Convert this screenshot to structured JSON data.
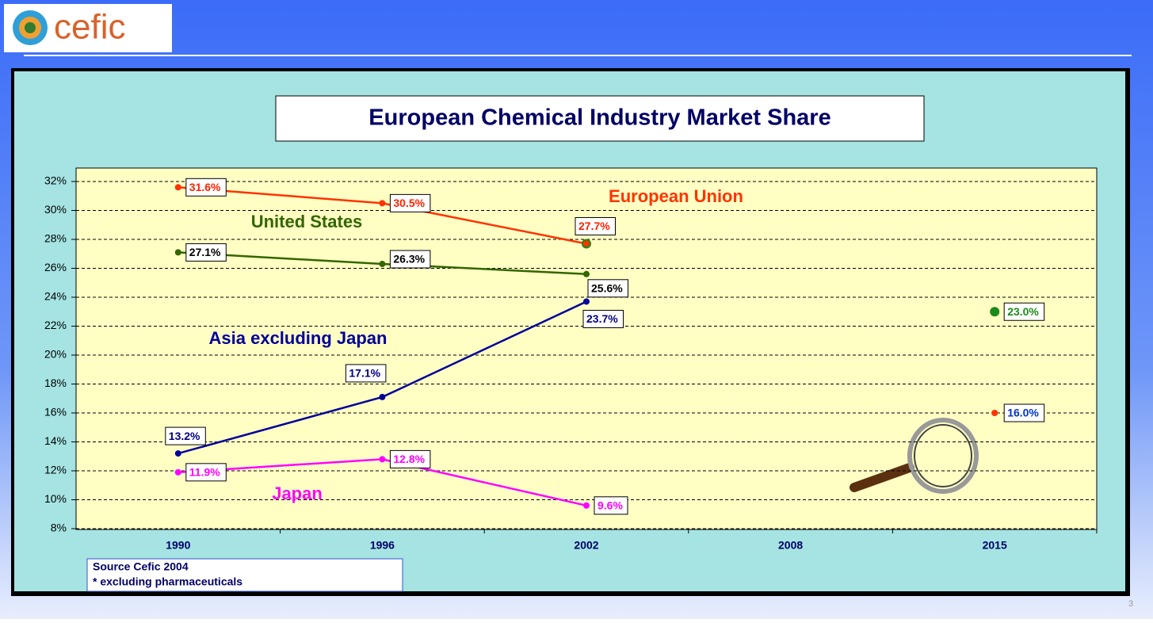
{
  "logo": "cefic",
  "page_number": "3",
  "chart_data": {
    "type": "line",
    "title": "European Chemical Industry Market Share",
    "categories": [
      "1990",
      "1996",
      "2002",
      "2008",
      "2015"
    ],
    "ylim": [
      8,
      32
    ],
    "yticks": [
      {
        "value": 8,
        "label": "8%"
      },
      {
        "value": 10,
        "label": "10%"
      },
      {
        "value": 12,
        "label": "12%"
      },
      {
        "value": 14,
        "label": "14%"
      },
      {
        "value": 16,
        "label": "16%"
      },
      {
        "value": 18,
        "label": "18%"
      },
      {
        "value": 20,
        "label": "20%"
      },
      {
        "value": 22,
        "label": "22%"
      },
      {
        "value": 24,
        "label": "24%"
      },
      {
        "value": 26,
        "label": "26%"
      },
      {
        "value": 28,
        "label": "28%"
      },
      {
        "value": 30,
        "label": "30%"
      },
      {
        "value": 32,
        "label": "32%"
      }
    ],
    "grid": true,
    "series": [
      {
        "name": "European Union",
        "color": "#ff3300",
        "label_color": "#ff2200",
        "values": [
          31.6,
          30.5,
          27.7,
          null,
          null
        ],
        "value_labels": [
          "31.6%",
          "30.5%",
          "27.7%",
          null,
          null
        ]
      },
      {
        "name": "United States",
        "color": "#336600",
        "label_color": "#000000",
        "values": [
          27.1,
          26.3,
          25.6,
          null,
          null
        ],
        "value_labels": [
          "27.1%",
          "26.3%",
          "25.6%",
          null,
          null
        ]
      },
      {
        "name": "Asia excluding Japan",
        "color": "#000099",
        "label_color": "#000080",
        "values": [
          13.2,
          17.1,
          23.7,
          null,
          null
        ],
        "value_labels": [
          "13.2%",
          "17.1%",
          "23.7%",
          null,
          null
        ]
      },
      {
        "name": "Japan",
        "color": "#ff00ff",
        "label_color": "#ff00ff",
        "values": [
          11.9,
          12.8,
          9.6,
          null,
          null
        ],
        "value_labels": [
          "11.9%",
          "12.8%",
          "9.6%",
          null,
          null
        ]
      },
      {
        "color": "#ff3300",
        "marker_color": "#1a8a1a",
        "label_color": "#1a8a1a",
        "line_style": "dashed",
        "values": [
          null,
          null,
          27.7,
          null,
          23.0
        ],
        "value_labels": [
          null,
          null,
          null,
          null,
          "23.0%"
        ]
      },
      {
        "color": "#ff3300",
        "marker_color": "#ff3300",
        "label_color": "#0033cc",
        "line_style": "dotted",
        "values": [
          null,
          null,
          27.7,
          null,
          16.0
        ],
        "value_labels": [
          null,
          null,
          null,
          null,
          "16.0%"
        ]
      }
    ],
    "notes": [
      "Source Cefic 2004",
      "* excluding pharmaceuticals"
    ]
  }
}
